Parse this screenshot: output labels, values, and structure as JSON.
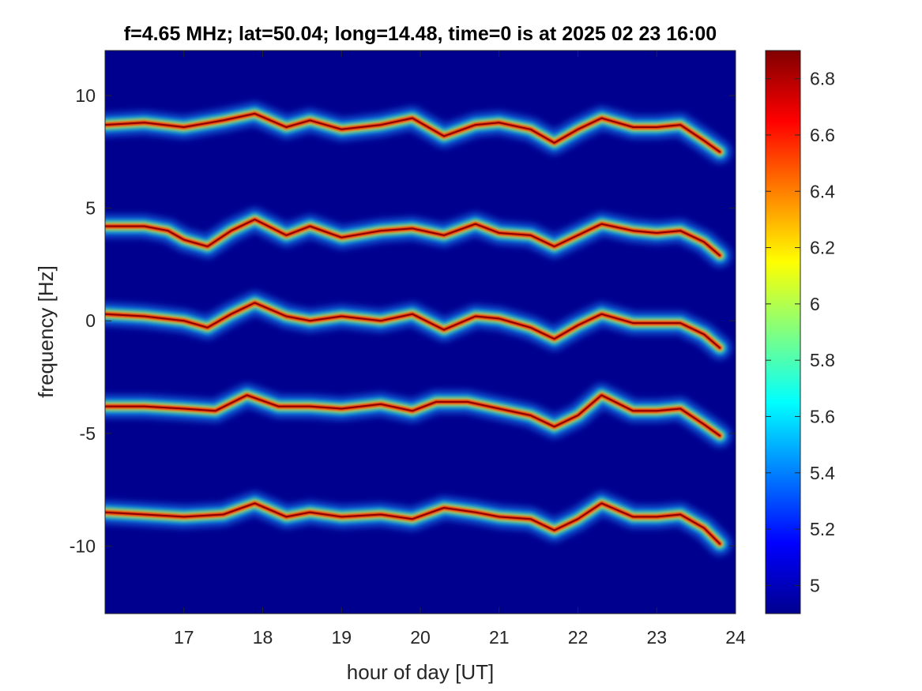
{
  "chart_data": {
    "type": "heatmap",
    "title": "f=4.65 MHz;  lat=50.04; long=14.48, time=0 is at 2025 02 23 16:00",
    "xlabel": "hour of day [UT]",
    "ylabel": "frequency [Hz]",
    "xlim": [
      16.0,
      24.0
    ],
    "ylim": [
      -13.0,
      12.0
    ],
    "x_ticks": [
      17,
      18,
      19,
      20,
      21,
      22,
      23,
      24
    ],
    "x_tick_labels": [
      "17",
      "18",
      "19",
      "20",
      "21",
      "22",
      "23",
      "24"
    ],
    "y_ticks": [
      10,
      5,
      0,
      -5,
      -10
    ],
    "y_tick_labels": [
      "10",
      "5",
      "0",
      "-5",
      "-10"
    ],
    "colorbar": {
      "colormap": "jet",
      "range": [
        4.9,
        6.9
      ],
      "ticks": [
        6.8,
        6.6,
        6.4,
        6.2,
        6.0,
        5.8,
        5.6,
        5.4,
        5.2,
        5.0
      ],
      "tick_labels": [
        "6.8",
        "6.6",
        "6.4",
        "6.2",
        "6",
        "5.8",
        "5.6",
        "5.4",
        "5.2",
        "5"
      ]
    },
    "background_level": 4.95,
    "grid": false,
    "traces": [
      {
        "name": "",
        "points": [
          [
            16.0,
            8.7
          ],
          [
            16.5,
            8.8
          ],
          [
            17.0,
            8.6
          ],
          [
            17.5,
            8.9
          ],
          [
            17.9,
            9.2
          ],
          [
            18.3,
            8.6
          ],
          [
            18.6,
            8.9
          ],
          [
            19.0,
            8.5
          ],
          [
            19.5,
            8.7
          ],
          [
            19.9,
            9.0
          ],
          [
            20.3,
            8.2
          ],
          [
            20.7,
            8.7
          ],
          [
            21.0,
            8.8
          ],
          [
            21.4,
            8.5
          ],
          [
            21.7,
            7.9
          ],
          [
            22.0,
            8.5
          ],
          [
            22.3,
            9.0
          ],
          [
            22.7,
            8.6
          ],
          [
            23.0,
            8.6
          ],
          [
            23.3,
            8.7
          ],
          [
            23.6,
            8.0
          ],
          [
            23.8,
            7.5
          ]
        ]
      },
      {
        "name": "",
        "points": [
          [
            16.0,
            4.2
          ],
          [
            16.5,
            4.2
          ],
          [
            16.8,
            4.0
          ],
          [
            17.0,
            3.6
          ],
          [
            17.3,
            3.3
          ],
          [
            17.6,
            4.0
          ],
          [
            17.9,
            4.5
          ],
          [
            18.3,
            3.8
          ],
          [
            18.6,
            4.2
          ],
          [
            19.0,
            3.7
          ],
          [
            19.5,
            4.0
          ],
          [
            19.9,
            4.1
          ],
          [
            20.3,
            3.8
          ],
          [
            20.7,
            4.3
          ],
          [
            21.0,
            3.9
          ],
          [
            21.4,
            3.8
          ],
          [
            21.7,
            3.3
          ],
          [
            22.0,
            3.8
          ],
          [
            22.3,
            4.3
          ],
          [
            22.7,
            4.0
          ],
          [
            23.0,
            3.9
          ],
          [
            23.3,
            4.0
          ],
          [
            23.6,
            3.5
          ],
          [
            23.8,
            2.9
          ]
        ]
      },
      {
        "name": "",
        "points": [
          [
            16.0,
            0.3
          ],
          [
            16.5,
            0.2
          ],
          [
            17.0,
            0.0
          ],
          [
            17.3,
            -0.3
          ],
          [
            17.6,
            0.3
          ],
          [
            17.9,
            0.8
          ],
          [
            18.3,
            0.2
          ],
          [
            18.6,
            0.0
          ],
          [
            19.0,
            0.2
          ],
          [
            19.5,
            0.0
          ],
          [
            19.9,
            0.3
          ],
          [
            20.3,
            -0.4
          ],
          [
            20.7,
            0.2
          ],
          [
            21.0,
            0.1
          ],
          [
            21.4,
            -0.3
          ],
          [
            21.7,
            -0.8
          ],
          [
            22.0,
            -0.2
          ],
          [
            22.3,
            0.3
          ],
          [
            22.7,
            -0.1
          ],
          [
            23.0,
            -0.1
          ],
          [
            23.3,
            -0.1
          ],
          [
            23.6,
            -0.6
          ],
          [
            23.8,
            -1.2
          ]
        ]
      },
      {
        "name": "",
        "points": [
          [
            16.0,
            -3.8
          ],
          [
            16.5,
            -3.8
          ],
          [
            17.0,
            -3.9
          ],
          [
            17.4,
            -4.0
          ],
          [
            17.8,
            -3.3
          ],
          [
            18.2,
            -3.8
          ],
          [
            18.6,
            -3.8
          ],
          [
            19.0,
            -3.9
          ],
          [
            19.5,
            -3.7
          ],
          [
            19.9,
            -4.0
          ],
          [
            20.2,
            -3.6
          ],
          [
            20.6,
            -3.6
          ],
          [
            21.0,
            -3.9
          ],
          [
            21.4,
            -4.2
          ],
          [
            21.7,
            -4.7
          ],
          [
            22.0,
            -4.2
          ],
          [
            22.3,
            -3.3
          ],
          [
            22.7,
            -4.0
          ],
          [
            23.0,
            -4.0
          ],
          [
            23.3,
            -3.9
          ],
          [
            23.6,
            -4.6
          ],
          [
            23.8,
            -5.1
          ]
        ]
      },
      {
        "name": "",
        "points": [
          [
            16.0,
            -8.5
          ],
          [
            16.5,
            -8.6
          ],
          [
            17.0,
            -8.7
          ],
          [
            17.5,
            -8.6
          ],
          [
            17.9,
            -8.1
          ],
          [
            18.3,
            -8.7
          ],
          [
            18.6,
            -8.5
          ],
          [
            19.0,
            -8.7
          ],
          [
            19.5,
            -8.6
          ],
          [
            19.9,
            -8.8
          ],
          [
            20.3,
            -8.3
          ],
          [
            20.7,
            -8.5
          ],
          [
            21.0,
            -8.7
          ],
          [
            21.4,
            -8.8
          ],
          [
            21.7,
            -9.3
          ],
          [
            22.0,
            -8.8
          ],
          [
            22.3,
            -8.1
          ],
          [
            22.7,
            -8.7
          ],
          [
            23.0,
            -8.7
          ],
          [
            23.3,
            -8.6
          ],
          [
            23.6,
            -9.2
          ],
          [
            23.8,
            -9.9
          ]
        ]
      }
    ]
  }
}
